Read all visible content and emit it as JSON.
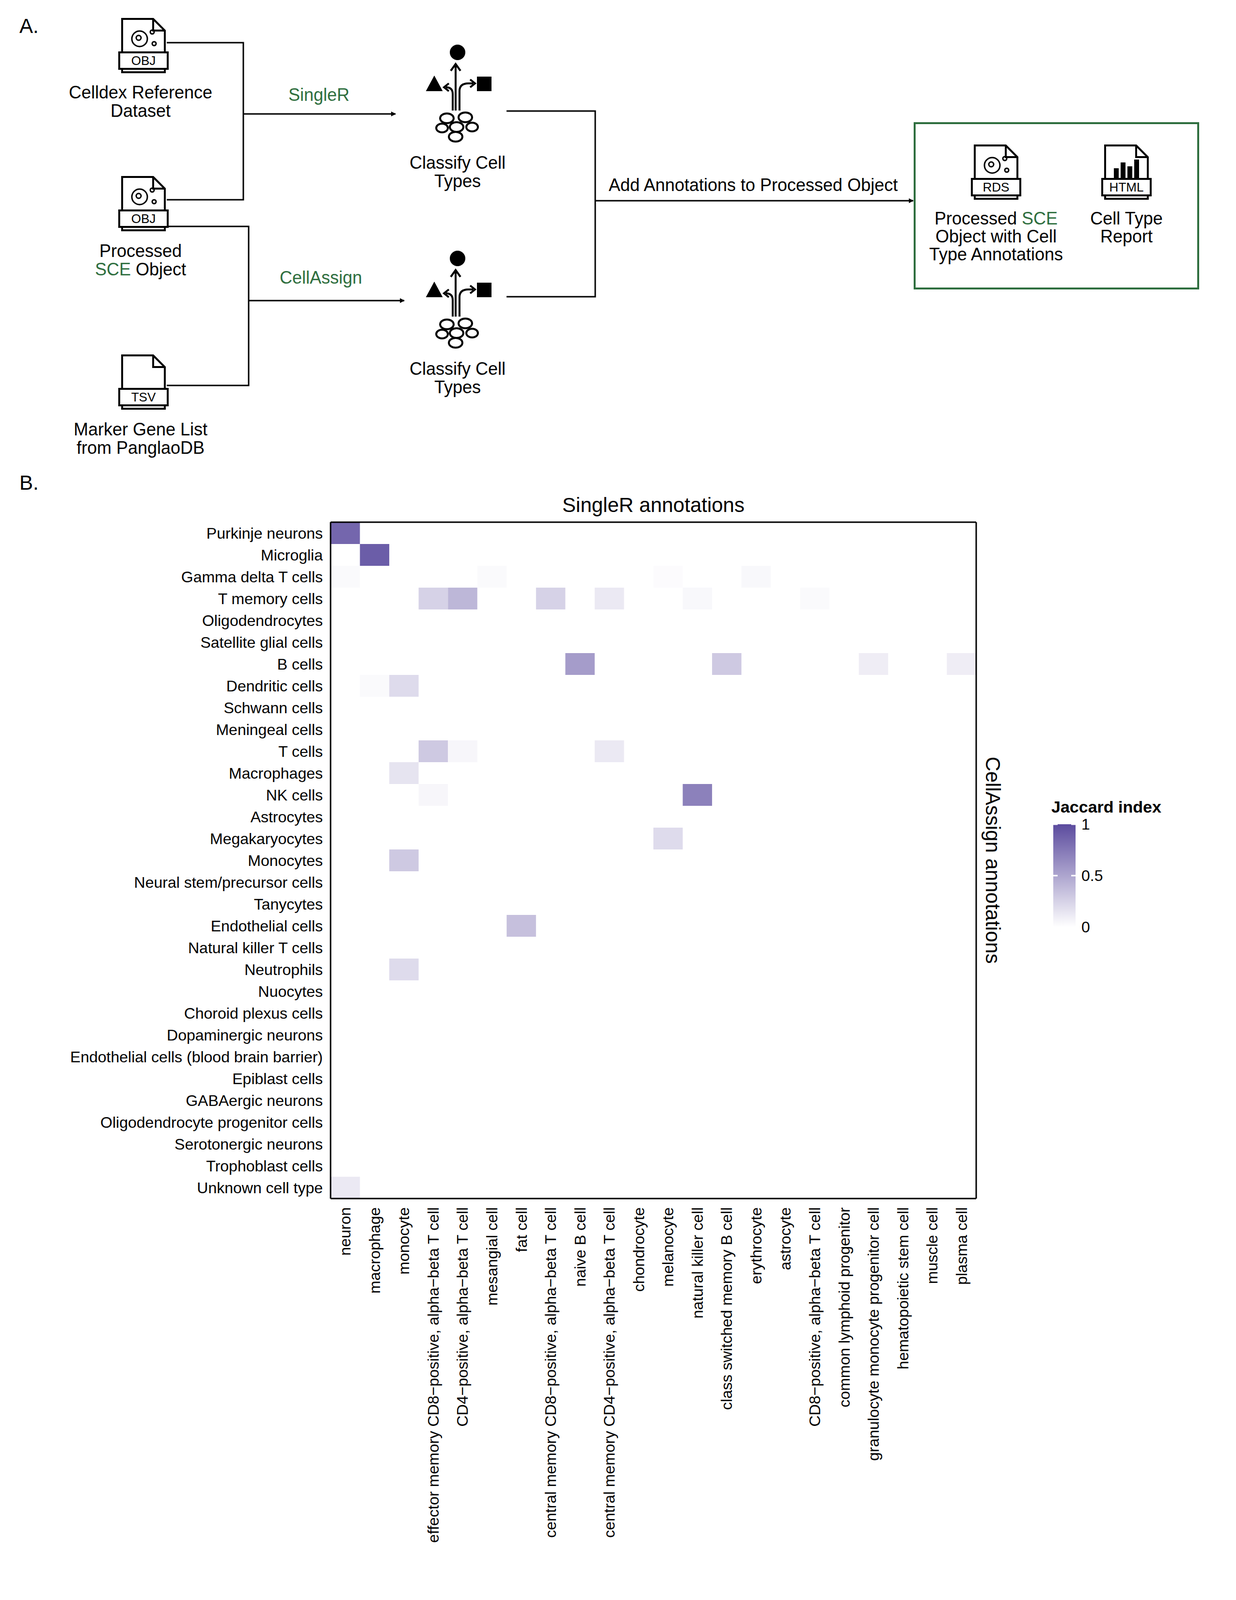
{
  "diagram": {
    "panel_label": "A.",
    "inputs": [
      {
        "file": "OBJ",
        "label": [
          "Celldex Reference",
          "Dataset"
        ]
      },
      {
        "file": "OBJ",
        "label": [
          "Processed",
          "SCE Object"
        ],
        "highlight": "SCE"
      },
      {
        "file": "TSV",
        "label": [
          "Marker Gene List",
          "from PanglaoDB"
        ]
      }
    ],
    "methods": [
      {
        "name": "SingleR",
        "node": [
          "Classify Cell",
          "Types"
        ]
      },
      {
        "name": "CellAssign",
        "node": [
          "Classify Cell",
          "Types"
        ]
      }
    ],
    "merge_label": "Add Annotations to Processed Object",
    "outputs": [
      {
        "file": "RDS",
        "label": [
          "Processed SCE",
          "Object with Cell",
          "Type Annotations"
        ],
        "highlight": "SCE"
      },
      {
        "file": "HTML",
        "label": [
          "Cell Type",
          "Report"
        ]
      }
    ],
    "highlight_color": "#2e6e3e"
  },
  "chart_data": {
    "type": "heatmap",
    "panel_label": "B.",
    "title": "SingleR annotations",
    "ylabel": "CellAssign annotations",
    "x": [
      "neuron",
      "macrophage",
      "monocyte",
      "effector memory CD8−positive, alpha−beta T cell",
      "CD4−positive, alpha−beta T cell",
      "mesangial cell",
      "fat cell",
      "central memory CD8−positive, alpha−beta T cell",
      "naive B cell",
      "central memory CD4−positive, alpha−beta T cell",
      "chondrocyte",
      "melanocyte",
      "natural killer cell",
      "class switched memory B cell",
      "erythrocyte",
      "astrocyte",
      "CD8−positive, alpha−beta T cell",
      "common lymphoid progenitor",
      "granulocyte monocyte progenitor cell",
      "hematopoietic stem cell",
      "muscle cell",
      "plasma cell"
    ],
    "y": [
      "Purkinje neurons",
      "Microglia",
      "Gamma delta T cells",
      "T memory cells",
      "Oligodendrocytes",
      "Satellite glial cells",
      "B cells",
      "Dendritic cells",
      "Schwann cells",
      "Meningeal cells",
      "T cells",
      "Macrophages",
      "NK cells",
      "Astrocytes",
      "Megakaryocytes",
      "Monocytes",
      "Neural stem/precursor cells",
      "Tanycytes",
      "Endothelial cells",
      "Natural killer T cells",
      "Neutrophils",
      "Nuocytes",
      "Choroid plexus cells",
      "Dopaminergic neurons",
      "Endothelial cells (blood brain barrier)",
      "Epiblast cells",
      "GABAergic neurons",
      "Oligodendrocyte progenitor cells",
      "Serotonergic neurons",
      "Trophoblast cells",
      "Unknown cell type"
    ],
    "cells": [
      {
        "x": "neuron",
        "y": "Purkinje neurons",
        "value": 0.85
      },
      {
        "x": "macrophage",
        "y": "Microglia",
        "value": 0.9
      },
      {
        "x": "neuron",
        "y": "Gamma delta T cells",
        "value": 0.03
      },
      {
        "x": "mesangial cell",
        "y": "Gamma delta T cells",
        "value": 0.03
      },
      {
        "x": "melanocyte",
        "y": "Gamma delta T cells",
        "value": 0.02
      },
      {
        "x": "erythrocyte",
        "y": "Gamma delta T cells",
        "value": 0.04
      },
      {
        "x": "effector memory CD8−positive, alpha−beta T cell",
        "y": "T memory cells",
        "value": 0.25
      },
      {
        "x": "CD4−positive, alpha−beta T cell",
        "y": "T memory cells",
        "value": 0.4
      },
      {
        "x": "central memory CD8−positive, alpha−beta T cell",
        "y": "T memory cells",
        "value": 0.25
      },
      {
        "x": "central memory CD4−positive, alpha−beta T cell",
        "y": "T memory cells",
        "value": 0.12
      },
      {
        "x": "natural killer cell",
        "y": "T memory cells",
        "value": 0.04
      },
      {
        "x": "CD8−positive, alpha−beta T cell",
        "y": "T memory cells",
        "value": 0.03
      },
      {
        "x": "naive B cell",
        "y": "B cells",
        "value": 0.55
      },
      {
        "x": "class switched memory B cell",
        "y": "B cells",
        "value": 0.3
      },
      {
        "x": "granulocyte monocyte progenitor cell",
        "y": "B cells",
        "value": 0.1
      },
      {
        "x": "plasma cell",
        "y": "B cells",
        "value": 0.1
      },
      {
        "x": "macrophage",
        "y": "Dendritic cells",
        "value": 0.03
      },
      {
        "x": "monocyte",
        "y": "Dendritic cells",
        "value": 0.2
      },
      {
        "x": "effector memory CD8−positive, alpha−beta T cell",
        "y": "T cells",
        "value": 0.3
      },
      {
        "x": "CD4−positive, alpha−beta T cell",
        "y": "T cells",
        "value": 0.05
      },
      {
        "x": "central memory CD4−positive, alpha−beta T cell",
        "y": "T cells",
        "value": 0.12
      },
      {
        "x": "monocyte",
        "y": "Macrophages",
        "value": 0.15
      },
      {
        "x": "effector memory CD8−positive, alpha−beta T cell",
        "y": "NK cells",
        "value": 0.05
      },
      {
        "x": "natural killer cell",
        "y": "NK cells",
        "value": 0.7
      },
      {
        "x": "melanocyte",
        "y": "Megakaryocytes",
        "value": 0.2
      },
      {
        "x": "monocyte",
        "y": "Monocytes",
        "value": 0.3
      },
      {
        "x": "fat cell",
        "y": "Endothelial cells",
        "value": 0.35
      },
      {
        "x": "monocyte",
        "y": "Neutrophils",
        "value": 0.2
      },
      {
        "x": "neuron",
        "y": "Unknown cell type",
        "value": 0.12
      }
    ],
    "colorbar": {
      "title": "Jaccard index",
      "range": [
        0,
        1
      ],
      "ticks": [
        0,
        0.5,
        1
      ],
      "colors": [
        "#ffffff",
        "#5b4b9e"
      ]
    }
  }
}
